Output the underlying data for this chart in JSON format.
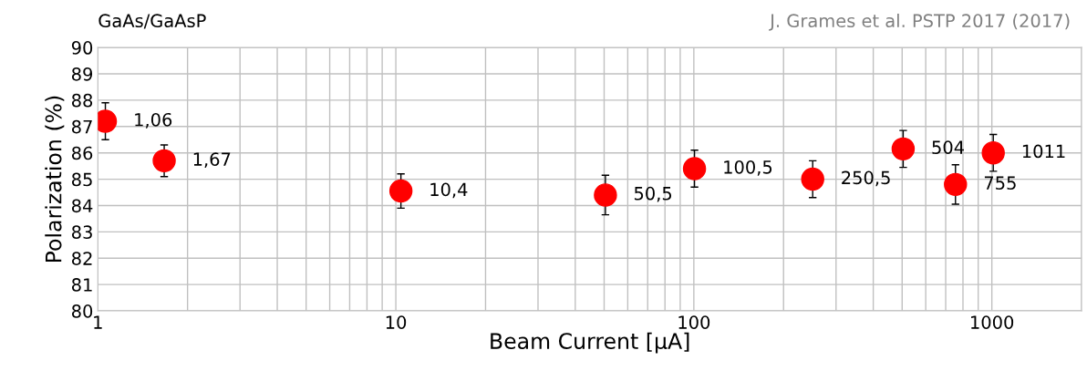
{
  "chart_data": {
    "type": "scatter",
    "title": "GaAs/GaAsP",
    "xlabel": "Beam Current [μA]",
    "ylabel": "Polarization (%)",
    "x": [
      1.06,
      1.67,
      10.4,
      50.5,
      100.5,
      250.5,
      504,
      755,
      1011
    ],
    "series": [
      {
        "color": "#ff0000",
        "values": [
          87.2,
          85.7,
          84.55,
          84.4,
          85.4,
          85.0,
          86.15,
          84.8,
          86.0
        ],
        "errors": [
          0.7,
          0.6,
          0.65,
          0.75,
          0.7,
          0.7,
          0.7,
          0.75,
          0.7
        ]
      }
    ],
    "annotations": [
      "J. Grames et al. PSTP 2017 (2017)",
      {
        "text": "1,06",
        "x": 1.06,
        "y": 87.2
      },
      {
        "text": "1,67",
        "x": 1.67,
        "y": 85.7
      },
      {
        "text": "10,4",
        "x": 10.4,
        "y": 84.55
      },
      {
        "text": "50,5",
        "x": 50.5,
        "y": 84.4
      },
      {
        "text": "100,5",
        "x": 100.5,
        "y": 85.4
      },
      {
        "text": "250,5",
        "x": 250.5,
        "y": 85.0
      },
      {
        "text": "504",
        "x": 504,
        "y": 86.15
      },
      {
        "text": "755",
        "x": 755,
        "y": 84.8
      },
      {
        "text": "1011",
        "x": 1011,
        "y": 86.0
      }
    ],
    "log": "x",
    "xlim": [
      1,
      2000
    ],
    "xticks": [
      1,
      10,
      100,
      1000
    ],
    "ylim": [
      80,
      90
    ],
    "yticks": [
      80,
      81,
      82,
      83,
      84,
      85,
      86,
      87,
      88,
      89,
      90
    ],
    "grid": true,
    "marker": "circle",
    "legend": false
  }
}
